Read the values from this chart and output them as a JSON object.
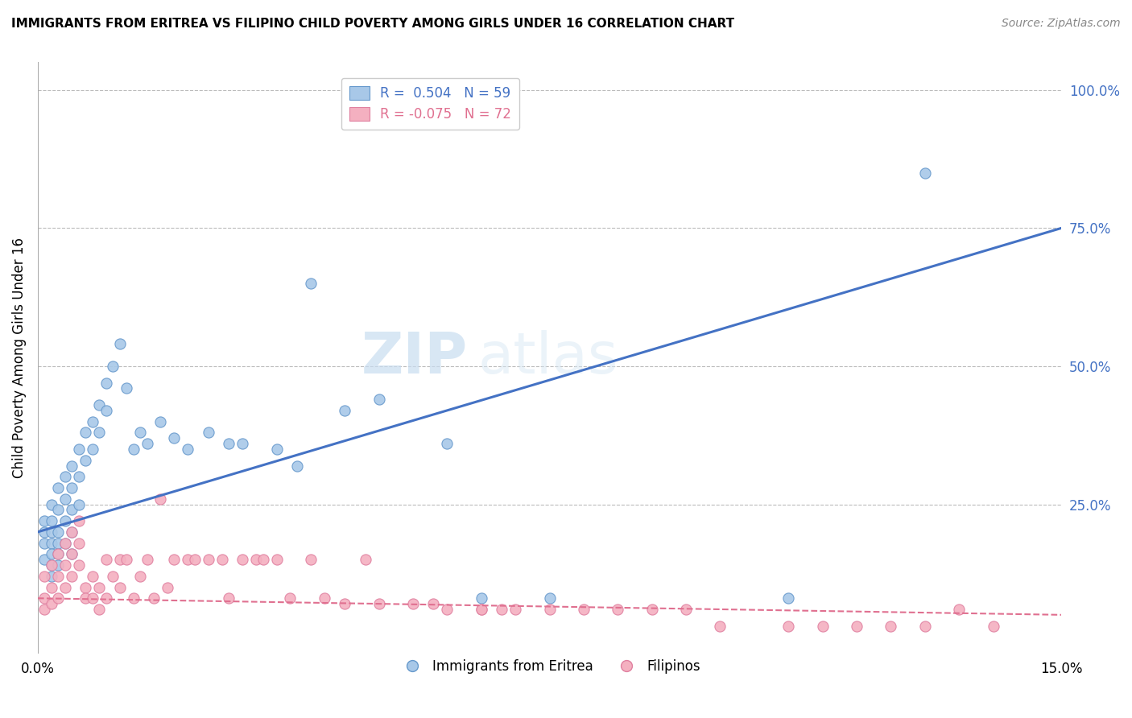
{
  "title": "IMMIGRANTS FROM ERITREA VS FILIPINO CHILD POVERTY AMONG GIRLS UNDER 16 CORRELATION CHART",
  "source": "Source: ZipAtlas.com",
  "ylabel": "Child Poverty Among Girls Under 16",
  "ylabel_ticks": [
    "100.0%",
    "75.0%",
    "50.0%",
    "25.0%"
  ],
  "ylabel_values": [
    1.0,
    0.75,
    0.5,
    0.25
  ],
  "xmin": 0.0,
  "xmax": 0.15,
  "ymin": -0.02,
  "ymax": 1.05,
  "blue_color": "#a8c8e8",
  "blue_edge": "#6699cc",
  "pink_color": "#f4b0c0",
  "pink_edge": "#e080a0",
  "trend_blue": "#4472c4",
  "trend_pink": "#e07090",
  "legend_R1": "R =  0.504",
  "legend_N1": "N = 59",
  "legend_R2": "R = -0.075",
  "legend_N2": "N = 72",
  "label1": "Immigrants from Eritrea",
  "label2": "Filipinos",
  "watermark_zip": "ZIP",
  "watermark_atlas": "atlas",
  "blue_trend_x0": 0.0,
  "blue_trend_y0": 0.2,
  "blue_trend_x1": 0.15,
  "blue_trend_y1": 0.75,
  "pink_trend_x0": 0.0,
  "pink_trend_y0": 0.08,
  "pink_trend_x1": 0.15,
  "pink_trend_y1": 0.05,
  "blue_scatter_x": [
    0.001,
    0.001,
    0.001,
    0.001,
    0.002,
    0.002,
    0.002,
    0.002,
    0.002,
    0.002,
    0.002,
    0.003,
    0.003,
    0.003,
    0.003,
    0.003,
    0.003,
    0.004,
    0.004,
    0.004,
    0.004,
    0.005,
    0.005,
    0.005,
    0.005,
    0.005,
    0.006,
    0.006,
    0.006,
    0.007,
    0.007,
    0.008,
    0.008,
    0.009,
    0.009,
    0.01,
    0.01,
    0.011,
    0.012,
    0.013,
    0.014,
    0.015,
    0.016,
    0.018,
    0.02,
    0.022,
    0.025,
    0.028,
    0.03,
    0.035,
    0.038,
    0.04,
    0.045,
    0.05,
    0.06,
    0.065,
    0.075,
    0.11,
    0.13
  ],
  "blue_scatter_y": [
    0.2,
    0.22,
    0.18,
    0.15,
    0.25,
    0.22,
    0.2,
    0.18,
    0.16,
    0.14,
    0.12,
    0.28,
    0.24,
    0.2,
    0.18,
    0.16,
    0.14,
    0.3,
    0.26,
    0.22,
    0.18,
    0.32,
    0.28,
    0.24,
    0.2,
    0.16,
    0.35,
    0.3,
    0.25,
    0.38,
    0.33,
    0.4,
    0.35,
    0.43,
    0.38,
    0.47,
    0.42,
    0.5,
    0.54,
    0.46,
    0.35,
    0.38,
    0.36,
    0.4,
    0.37,
    0.35,
    0.38,
    0.36,
    0.36,
    0.35,
    0.32,
    0.65,
    0.42,
    0.44,
    0.36,
    0.08,
    0.08,
    0.08,
    0.85
  ],
  "pink_scatter_x": [
    0.001,
    0.001,
    0.001,
    0.002,
    0.002,
    0.002,
    0.003,
    0.003,
    0.003,
    0.004,
    0.004,
    0.004,
    0.005,
    0.005,
    0.005,
    0.006,
    0.006,
    0.006,
    0.007,
    0.007,
    0.008,
    0.008,
    0.009,
    0.009,
    0.01,
    0.01,
    0.011,
    0.012,
    0.012,
    0.013,
    0.014,
    0.015,
    0.016,
    0.017,
    0.018,
    0.019,
    0.02,
    0.022,
    0.023,
    0.025,
    0.027,
    0.028,
    0.03,
    0.032,
    0.033,
    0.035,
    0.037,
    0.04,
    0.042,
    0.045,
    0.048,
    0.05,
    0.055,
    0.058,
    0.06,
    0.065,
    0.07,
    0.075,
    0.08,
    0.085,
    0.09,
    0.095,
    0.1,
    0.11,
    0.115,
    0.12,
    0.125,
    0.13,
    0.135,
    0.14,
    0.065,
    0.068
  ],
  "pink_scatter_y": [
    0.08,
    0.12,
    0.06,
    0.14,
    0.1,
    0.07,
    0.16,
    0.12,
    0.08,
    0.18,
    0.14,
    0.1,
    0.2,
    0.16,
    0.12,
    0.22,
    0.18,
    0.14,
    0.1,
    0.08,
    0.12,
    0.08,
    0.1,
    0.06,
    0.15,
    0.08,
    0.12,
    0.15,
    0.1,
    0.15,
    0.08,
    0.12,
    0.15,
    0.08,
    0.26,
    0.1,
    0.15,
    0.15,
    0.15,
    0.15,
    0.15,
    0.08,
    0.15,
    0.15,
    0.15,
    0.15,
    0.08,
    0.15,
    0.08,
    0.07,
    0.15,
    0.07,
    0.07,
    0.07,
    0.06,
    0.06,
    0.06,
    0.06,
    0.06,
    0.06,
    0.06,
    0.06,
    0.03,
    0.03,
    0.03,
    0.03,
    0.03,
    0.03,
    0.06,
    0.03,
    0.06,
    0.06
  ]
}
